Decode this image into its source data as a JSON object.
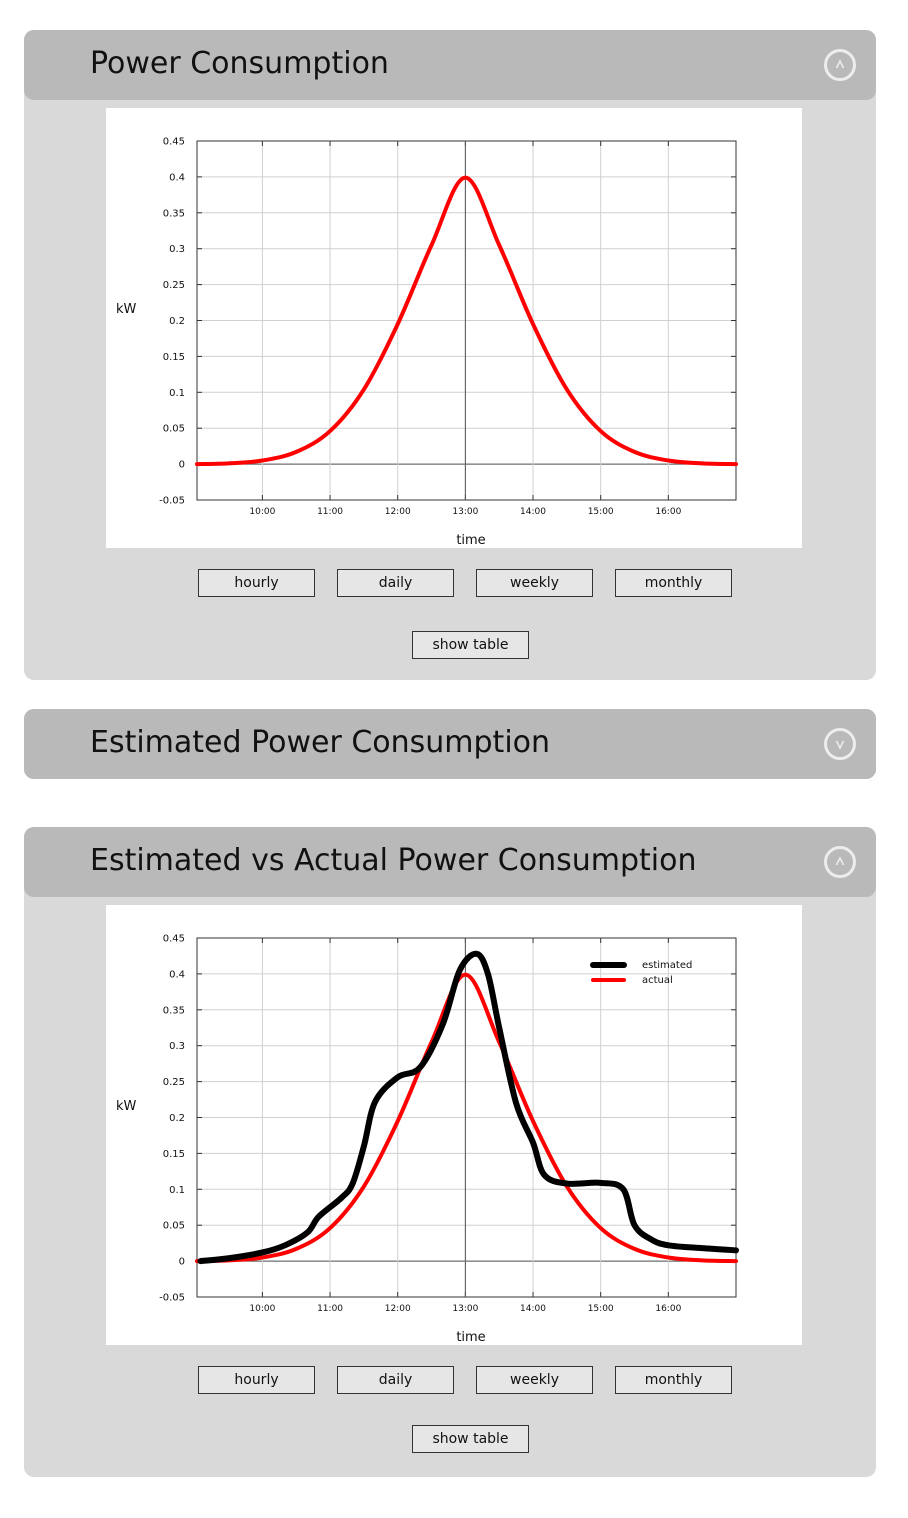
{
  "panels": [
    {
      "title": "Power Consumption",
      "toggle_icon": "chevron-up-icon",
      "buttons": [
        "hourly",
        "daily",
        "weekly",
        "monthly"
      ],
      "show_table": "show table"
    },
    {
      "title": "Estimated Power Consumption",
      "toggle_icon": "chevron-down-icon"
    },
    {
      "title": "Estimated vs Actual Power Consumption",
      "toggle_icon": "chevron-up-icon",
      "buttons": [
        "hourly",
        "daily",
        "weekly",
        "monthly"
      ],
      "show_table": "show table"
    }
  ],
  "chart_data": [
    {
      "type": "line",
      "title": "",
      "xlabel": "time",
      "ylabel": "kW",
      "xlim": [
        "09:02",
        "17:00"
      ],
      "ylim": [
        -0.05,
        0.45
      ],
      "x_ticks": [
        "10:00",
        "11:00",
        "12:00",
        "13:00",
        "14:00",
        "15:00",
        "16:00"
      ],
      "y_ticks": [
        "0.45",
        "0.4",
        "0.35",
        "0.3",
        "0.25",
        "0.2",
        "0.15",
        "0.1",
        "0.05",
        "0",
        "-0.05"
      ],
      "grid": true,
      "legend": "none",
      "series": [
        {
          "color": "#ff0000",
          "x": [
            "09:02",
            "09:30",
            "10:00",
            "10:30",
            "11:00",
            "11:30",
            "12:00",
            "12:30",
            "13:00",
            "13:30",
            "14:00",
            "14:30",
            "15:00",
            "15:30",
            "16:00",
            "16:30",
            "17:00"
          ],
          "values": [
            0.0,
            0.001,
            0.005,
            0.017,
            0.046,
            0.104,
            0.195,
            0.305,
            0.399,
            0.305,
            0.195,
            0.104,
            0.046,
            0.017,
            0.005,
            0.001,
            0.0
          ]
        }
      ]
    },
    {
      "type": "line",
      "title": "",
      "xlabel": "time",
      "ylabel": "kW",
      "xlim": [
        "09:02",
        "17:00"
      ],
      "ylim": [
        -0.05,
        0.45
      ],
      "x_ticks": [
        "10:00",
        "11:00",
        "12:00",
        "13:00",
        "14:00",
        "15:00",
        "16:00"
      ],
      "y_ticks": [
        "0.45",
        "0.4",
        "0.35",
        "0.3",
        "0.25",
        "0.2",
        "0.15",
        "0.1",
        "0.05",
        "0",
        "-0.05"
      ],
      "grid": true,
      "legend": "top-right",
      "series": [
        {
          "name": "estimated",
          "color": "#000000",
          "x": [
            "09:05",
            "09:30",
            "10:00",
            "10:20",
            "10:40",
            "10:50",
            "11:10",
            "11:20",
            "11:30",
            "11:40",
            "12:00",
            "12:20",
            "12:40",
            "12:55",
            "13:10",
            "13:20",
            "13:30",
            "13:45",
            "14:00",
            "14:10",
            "14:30",
            "15:00",
            "15:20",
            "15:30",
            "15:45",
            "16:00",
            "16:30",
            "17:00"
          ],
          "values": [
            0.0,
            0.004,
            0.012,
            0.022,
            0.04,
            0.062,
            0.088,
            0.108,
            0.16,
            0.222,
            0.256,
            0.27,
            0.33,
            0.405,
            0.428,
            0.4,
            0.325,
            0.22,
            0.165,
            0.12,
            0.108,
            0.109,
            0.1,
            0.05,
            0.03,
            0.022,
            0.018,
            0.015
          ]
        },
        {
          "name": "actual",
          "color": "#ff0000",
          "x": [
            "09:02",
            "09:30",
            "10:00",
            "10:30",
            "11:00",
            "11:30",
            "12:00",
            "12:30",
            "13:00",
            "13:30",
            "14:00",
            "14:30",
            "15:00",
            "15:30",
            "16:00",
            "16:30",
            "17:00"
          ],
          "values": [
            0.0,
            0.001,
            0.005,
            0.017,
            0.046,
            0.104,
            0.195,
            0.305,
            0.399,
            0.305,
            0.195,
            0.104,
            0.046,
            0.017,
            0.005,
            0.001,
            0.0
          ]
        }
      ]
    }
  ]
}
